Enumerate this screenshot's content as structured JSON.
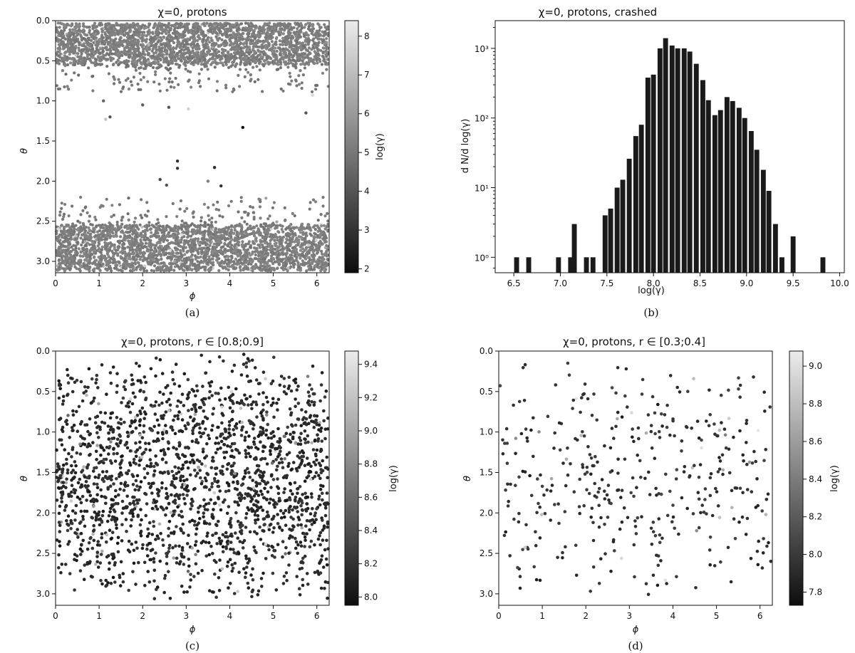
{
  "chart_data": [
    {
      "id": "a",
      "type": "scatter",
      "title": "χ=0, protons",
      "xlabel": "ϕ",
      "ylabel": "θ",
      "xlim": [
        0,
        6.283
      ],
      "ylim": [
        3.1416,
        0
      ],
      "y_inverted": true,
      "xticks": [
        "0",
        "1",
        "2",
        "3",
        "4",
        "5",
        "6"
      ],
      "yticks": [
        "0.0",
        "0.5",
        "1.0",
        "1.5",
        "2.0",
        "2.5",
        "3.0"
      ],
      "colorbar": {
        "label": "log(γ)",
        "range": [
          1.9,
          8.4
        ],
        "ticks": [
          "2",
          "3",
          "4",
          "5",
          "6",
          "7",
          "8"
        ]
      },
      "panel_label": "(a)",
      "description_of_density": [
        {
          "theta_range": [
            0.03,
            0.55
          ],
          "log_gamma_typical": 5.2,
          "density": "dense"
        },
        {
          "theta_range": [
            0.55,
            0.9
          ],
          "log_gamma_typical": 5.0,
          "density": "sparse"
        },
        {
          "theta_range": [
            2.2,
            2.55
          ],
          "log_gamma_typical": 5.0,
          "density": "sparse"
        },
        {
          "theta_range": [
            2.55,
            3.12
          ],
          "log_gamma_typical": 5.2,
          "density": "dense"
        }
      ],
      "isolated_points": [
        {
          "x": 1.1,
          "y": 1.0,
          "c": 4.5
        },
        {
          "x": 1.15,
          "y": 1.23,
          "c": 7.2
        },
        {
          "x": 1.25,
          "y": 1.2,
          "c": 4.0
        },
        {
          "x": 2.0,
          "y": 1.05,
          "c": 4.2
        },
        {
          "x": 2.6,
          "y": 1.08,
          "c": 4.0
        },
        {
          "x": 3.05,
          "y": 1.1,
          "c": 7.6
        },
        {
          "x": 4.3,
          "y": 1.33,
          "c": 2.0
        },
        {
          "x": 5.75,
          "y": 1.15,
          "c": 4.0
        },
        {
          "x": 5.9,
          "y": 0.93,
          "c": 7.8
        },
        {
          "x": 2.8,
          "y": 1.75,
          "c": 3.0
        },
        {
          "x": 2.8,
          "y": 1.84,
          "c": 3.0
        },
        {
          "x": 3.65,
          "y": 1.83,
          "c": 2.8
        },
        {
          "x": 3.5,
          "y": 2.0,
          "c": 5.2
        },
        {
          "x": 2.4,
          "y": 1.98,
          "c": 3.6
        },
        {
          "x": 2.55,
          "y": 2.05,
          "c": 3.8
        },
        {
          "x": 3.8,
          "y": 2.06,
          "c": 3.0
        }
      ]
    },
    {
      "id": "b",
      "type": "bar",
      "title": "χ=0, protons, crashed",
      "xlabel": "log(γ)",
      "ylabel": "d N/d log(γ)",
      "xlim": [
        6.3,
        10.05
      ],
      "ylim": [
        0.6,
        2500
      ],
      "yscale": "log",
      "xticks": [
        "6.5",
        "7.0",
        "7.5",
        "8.0",
        "8.5",
        "9.0",
        "9.5",
        "10.0"
      ],
      "yticks": [
        "10⁰",
        "10¹",
        "10²",
        "10³"
      ],
      "bin_width": 0.0656,
      "bins": [
        {
          "x": 6.53,
          "y": 1
        },
        {
          "x": 6.66,
          "y": 1
        },
        {
          "x": 6.98,
          "y": 1
        },
        {
          "x": 7.11,
          "y": 1
        },
        {
          "x": 7.15,
          "y": 3
        },
        {
          "x": 7.28,
          "y": 1
        },
        {
          "x": 7.35,
          "y": 1
        },
        {
          "x": 7.48,
          "y": 4
        },
        {
          "x": 7.54,
          "y": 5
        },
        {
          "x": 7.61,
          "y": 10
        },
        {
          "x": 7.67,
          "y": 13
        },
        {
          "x": 7.74,
          "y": 26
        },
        {
          "x": 7.81,
          "y": 55
        },
        {
          "x": 7.87,
          "y": 80
        },
        {
          "x": 7.94,
          "y": 380
        },
        {
          "x": 8.0,
          "y": 420
        },
        {
          "x": 8.07,
          "y": 1000
        },
        {
          "x": 8.13,
          "y": 1400
        },
        {
          "x": 8.2,
          "y": 1100
        },
        {
          "x": 8.26,
          "y": 1000
        },
        {
          "x": 8.33,
          "y": 1000
        },
        {
          "x": 8.39,
          "y": 900
        },
        {
          "x": 8.46,
          "y": 600
        },
        {
          "x": 8.53,
          "y": 350
        },
        {
          "x": 8.59,
          "y": 180
        },
        {
          "x": 8.66,
          "y": 110
        },
        {
          "x": 8.72,
          "y": 130
        },
        {
          "x": 8.79,
          "y": 200
        },
        {
          "x": 8.85,
          "y": 175
        },
        {
          "x": 8.92,
          "y": 140
        },
        {
          "x": 8.98,
          "y": 100
        },
        {
          "x": 9.05,
          "y": 65
        },
        {
          "x": 9.11,
          "y": 35
        },
        {
          "x": 9.18,
          "y": 18
        },
        {
          "x": 9.24,
          "y": 9
        },
        {
          "x": 9.31,
          "y": 3
        },
        {
          "x": 9.38,
          "y": 1
        },
        {
          "x": 9.5,
          "y": 2
        },
        {
          "x": 9.82,
          "y": 1
        }
      ],
      "panel_label": "(b)"
    },
    {
      "id": "c",
      "type": "scatter",
      "title": "χ=0, protons, r ∈ [0.8;0.9]",
      "xlabel": "ϕ",
      "ylabel": "θ",
      "xlim": [
        0,
        6.283
      ],
      "ylim": [
        3.1416,
        0
      ],
      "y_inverted": true,
      "xticks": [
        "0",
        "1",
        "2",
        "3",
        "4",
        "5",
        "6"
      ],
      "yticks": [
        "0.0",
        "0.5",
        "1.0",
        "1.5",
        "2.0",
        "2.5",
        "3.0"
      ],
      "colorbar": {
        "label": "log(γ)",
        "range": [
          7.95,
          9.48
        ],
        "ticks": [
          "8.0",
          "8.2",
          "8.4",
          "8.6",
          "8.8",
          "9.0",
          "9.2",
          "9.4"
        ]
      },
      "panel_label": "(c)",
      "point_count_approx": 2000,
      "log_gamma_typical": 8.15
    },
    {
      "id": "d",
      "type": "scatter",
      "title": "χ=0, protons, r ∈ [0.3;0.4]",
      "xlabel": "ϕ",
      "ylabel": "θ",
      "xlim": [
        0,
        6.283
      ],
      "ylim": [
        3.1416,
        0
      ],
      "y_inverted": true,
      "xticks": [
        "0",
        "1",
        "2",
        "3",
        "4",
        "5",
        "6"
      ],
      "yticks": [
        "0.0",
        "0.5",
        "1.0",
        "1.5",
        "2.0",
        "2.5",
        "3.0"
      ],
      "colorbar": {
        "label": "log(γ)",
        "range": [
          7.73,
          9.08
        ],
        "ticks": [
          "7.8",
          "8.0",
          "8.2",
          "8.4",
          "8.6",
          "8.8",
          "9.0"
        ]
      },
      "panel_label": "(d)",
      "point_count_approx": 400,
      "log_gamma_typical": 7.95
    }
  ]
}
